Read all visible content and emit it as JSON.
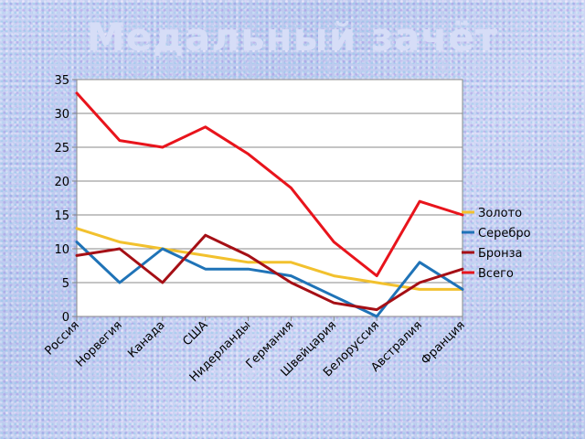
{
  "chart_data": {
    "type": "line",
    "title": "Медальный зачёт",
    "categories": [
      "Россия",
      "Норвегия",
      "Канада",
      "США",
      "Нидерланды",
      "Германия",
      "Швейцария",
      "Белоруссия",
      "Австралия",
      "Франция"
    ],
    "series": [
      {
        "name": "Золото",
        "color": "#f2c12e",
        "values": [
          13,
          11,
          10,
          9,
          8,
          8,
          6,
          5,
          4,
          4
        ]
      },
      {
        "name": "Серебро",
        "color": "#1f73b7",
        "values": [
          11,
          5,
          10,
          7,
          7,
          6,
          3,
          0,
          8,
          4
        ]
      },
      {
        "name": "Бронза",
        "color": "#a50f15",
        "values": [
          9,
          10,
          5,
          12,
          9,
          5,
          2,
          1,
          5,
          7
        ]
      },
      {
        "name": "Всего",
        "color": "#e8141c",
        "values": [
          33,
          26,
          25,
          28,
          24,
          19,
          11,
          6,
          17,
          15
        ]
      }
    ],
    "ylim": [
      0,
      35
    ],
    "yticks": [
      0,
      5,
      10,
      15,
      20,
      25,
      30,
      35
    ],
    "grid": true,
    "legend": "right"
  }
}
